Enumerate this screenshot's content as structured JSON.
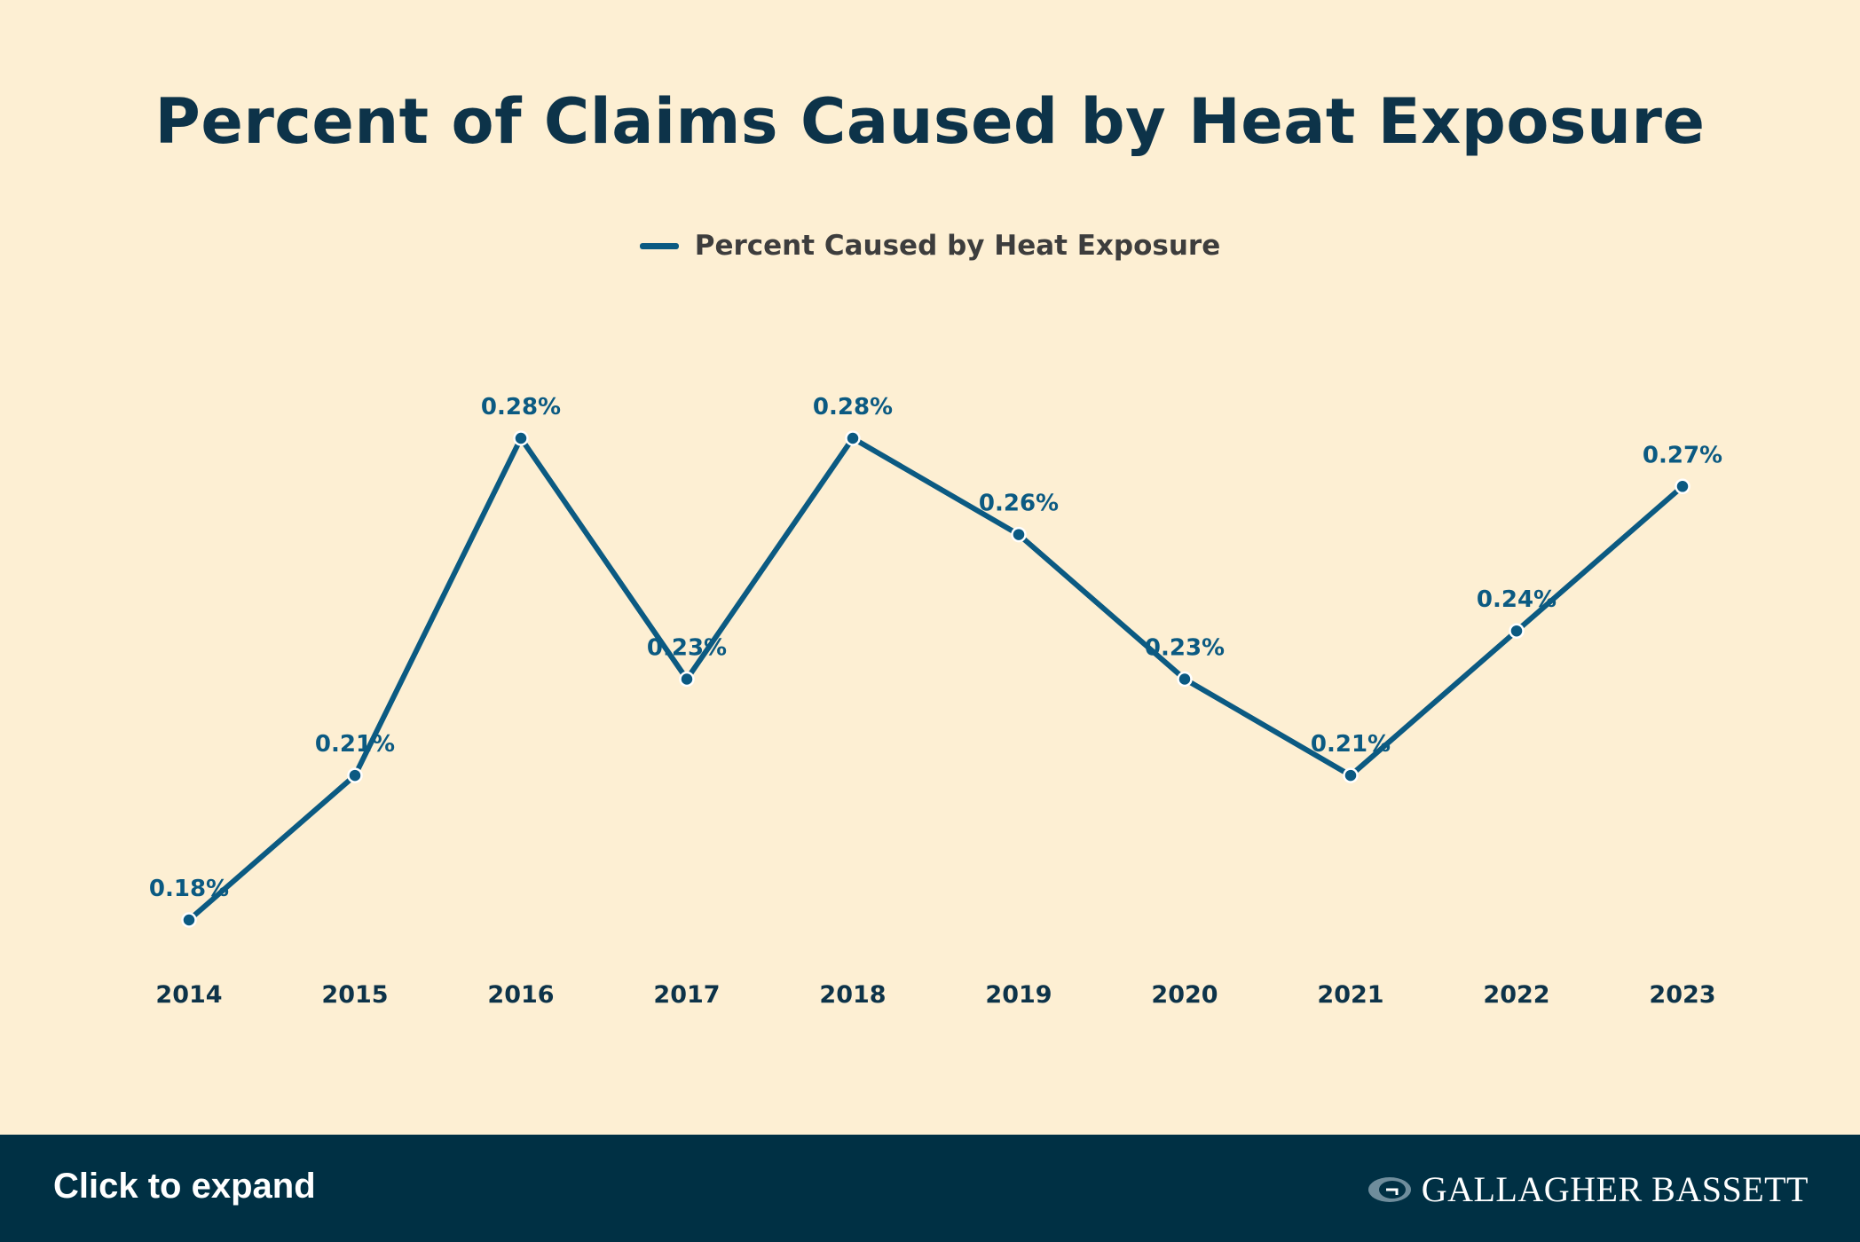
{
  "chart_data": {
    "type": "line",
    "title": "Percent of Claims Caused by Heat Exposure",
    "xlabel": "",
    "ylabel": "",
    "categories": [
      "2014",
      "2015",
      "2016",
      "2017",
      "2018",
      "2019",
      "2020",
      "2021",
      "2022",
      "2023"
    ],
    "series": [
      {
        "name": "Percent Caused by Heat Exposure",
        "values": [
          0.18,
          0.21,
          0.28,
          0.23,
          0.28,
          0.26,
          0.23,
          0.21,
          0.24,
          0.27
        ],
        "labels": [
          "0.18%",
          "0.21%",
          "0.28%",
          "0.23%",
          "0.28%",
          "0.26%",
          "0.23%",
          "0.21%",
          "0.24%",
          "0.27%"
        ],
        "color": "#0B5A82"
      }
    ],
    "legend_position": "top",
    "grid": false,
    "y_axis_visible": false
  },
  "colors": {
    "background": "#FDEFD3",
    "line": "#0B5A82",
    "title": "#0D3349",
    "footer": "#003044"
  },
  "footer": {
    "expand_label": "Click to expand",
    "brand_name": "GALLAGHER BASSETT",
    "brand_icon": "gallagher-bassett-logo-icon"
  }
}
